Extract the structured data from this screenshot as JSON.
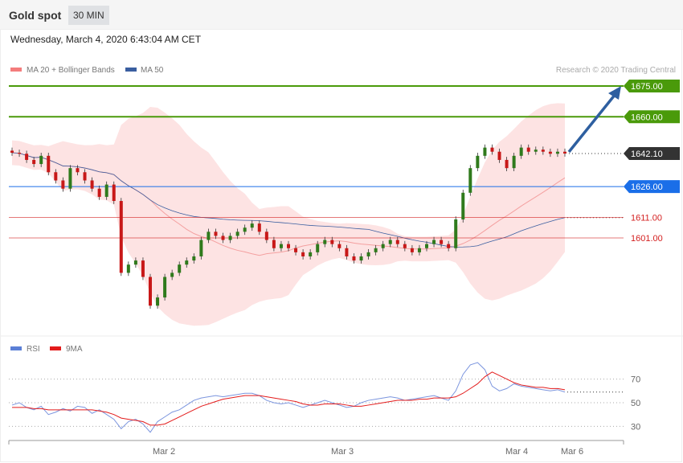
{
  "header": {
    "title": "Gold spot",
    "timeframe": "30 MIN"
  },
  "timestamp": "Wednesday, March 4, 2020 6:43:04 AM CET",
  "legend": [
    {
      "label": "MA 20 + Bollinger Bands",
      "color": "#f47c7c"
    },
    {
      "label": "MA 50",
      "color": "#3a5ea0"
    }
  ],
  "credit": "Research © 2020 Trading Central",
  "rsi_legend": [
    {
      "label": "RSI",
      "color": "#5b7fd6"
    },
    {
      "label": "9MA",
      "color": "#e31b1b"
    }
  ],
  "chart_data": {
    "type": "candlestick",
    "price_range": [
      1560,
      1680
    ],
    "levels": [
      {
        "value": 1675,
        "label": "1675.00",
        "color": "#4a9a0a",
        "kind": "resistance"
      },
      {
        "value": 1660,
        "label": "1660.00",
        "color": "#4a9a0a",
        "kind": "resistance"
      },
      {
        "value": 1642.1,
        "label": "1642.10",
        "color": "#333333",
        "kind": "last"
      },
      {
        "value": 1626,
        "label": "1626.00",
        "color": "#1a6ee8",
        "kind": "pivot"
      },
      {
        "value": 1611,
        "label": "1611.00",
        "color": "#d42020",
        "kind": "support"
      },
      {
        "value": 1601,
        "label": "1601.00",
        "color": "#d42020",
        "kind": "support"
      }
    ],
    "closes": [
      1642.5,
      1642,
      1639,
      1637,
      1641,
      1633,
      1629,
      1625,
      1635,
      1633,
      1629,
      1625,
      1621,
      1627,
      1619,
      1584,
      1588,
      1590,
      1582,
      1568,
      1572,
      1582,
      1584,
      1588,
      1590,
      1592,
      1600,
      1604,
      1602,
      1600,
      1602,
      1604,
      1606,
      1608,
      1604,
      1600,
      1596,
      1598,
      1596,
      1594,
      1592,
      1594,
      1598,
      1600,
      1598,
      1596,
      1592,
      1590,
      1592,
      1594,
      1596,
      1598,
      1600,
      1598,
      1596,
      1594,
      1596,
      1598,
      1600,
      1598,
      1596,
      1610,
      1623,
      1635,
      1641,
      1645,
      1643,
      1639,
      1635,
      1641,
      1645,
      1643,
      1644,
      1643,
      1642,
      1643,
      1642.1
    ],
    "rsi": {
      "levels": [
        30,
        50,
        70
      ],
      "x_labels": [
        "Mar 2",
        "Mar 3",
        "Mar 4",
        "Mar 6"
      ],
      "values": [
        48,
        50,
        46,
        44,
        47,
        40,
        42,
        45,
        43,
        47,
        46,
        41,
        44,
        40,
        36,
        28,
        34,
        36,
        32,
        25,
        34,
        38,
        42,
        44,
        48,
        52,
        54,
        55,
        56,
        55,
        56,
        57,
        58,
        58,
        56,
        52,
        50,
        49,
        50,
        48,
        46,
        48,
        50,
        52,
        50,
        48,
        46,
        47,
        50,
        52,
        53,
        54,
        55,
        54,
        52,
        53,
        54,
        55,
        56,
        54,
        52,
        60,
        74,
        82,
        84,
        78,
        64,
        60,
        62,
        66,
        64,
        63,
        62,
        61,
        60,
        61,
        59
      ],
      "ma": [
        46,
        46,
        46,
        45,
        45,
        44,
        44,
        44,
        44,
        44,
        44,
        44,
        43,
        42,
        40,
        37,
        36,
        35,
        34,
        31,
        31,
        32,
        35,
        38,
        41,
        44,
        47,
        49,
        51,
        53,
        54,
        55,
        56,
        56,
        56,
        55,
        54,
        53,
        52,
        51,
        49,
        48,
        48,
        49,
        49,
        49,
        48,
        47,
        47,
        48,
        49,
        50,
        51,
        52,
        52,
        52,
        53,
        53,
        54,
        54,
        54,
        55,
        58,
        62,
        66,
        72,
        76,
        73,
        70,
        67,
        65,
        64,
        63,
        63,
        62,
        62,
        61
      ]
    }
  }
}
